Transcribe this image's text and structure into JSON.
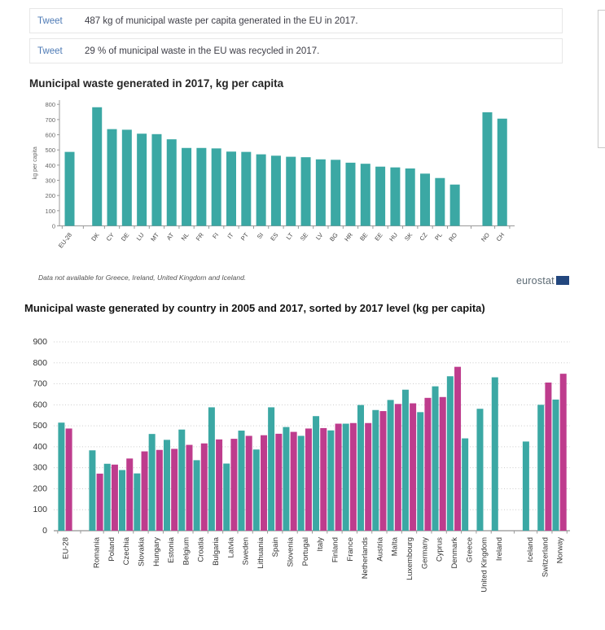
{
  "tweets": [
    {
      "link_label": "Tweet",
      "text": "487 kg of municipal waste per capita generated in the EU in 2017."
    },
    {
      "link_label": "Tweet",
      "text": "29 % of municipal waste in the EU was recycled in 2017."
    }
  ],
  "branding": {
    "logo_text": "eurostat"
  },
  "chart_data": [
    {
      "type": "bar",
      "title": "Municipal waste generated in 2017, kg per capita",
      "xlabel": "",
      "ylabel": "kg per capita",
      "ylim": [
        0,
        800
      ],
      "ytick_step": 100,
      "grid": false,
      "legend": "none",
      "bar_color": "#3BA8A4",
      "categories": [
        "EU-28",
        "DK",
        "CY",
        "DE",
        "LU",
        "MT",
        "AT",
        "NL",
        "FR",
        "FI",
        "IT",
        "PT",
        "SI",
        "ES",
        "LT",
        "SE",
        "LV",
        "BG",
        "HR",
        "BE",
        "EE",
        "HU",
        "SK",
        "CZ",
        "PL",
        "RO",
        "NO",
        "CH"
      ],
      "values": [
        487,
        781,
        637,
        633,
        607,
        604,
        570,
        513,
        513,
        510,
        489,
        487,
        471,
        462,
        455,
        452,
        438,
        435,
        416,
        409,
        390,
        385,
        378,
        344,
        315,
        272,
        748,
        706
      ],
      "gaps_before": [
        "DK",
        "NO"
      ],
      "footnote": "Data not available for Greece, Ireland, United Kingdom and Iceland."
    },
    {
      "type": "bar",
      "title": "Municipal waste generated by country in 2005 and 2017, sorted by 2017 level (kg per capita)",
      "xlabel": "",
      "ylabel": "",
      "ylim": [
        0,
        900
      ],
      "ytick_step": 100,
      "grid": true,
      "legend": "none",
      "categories": [
        "EU-28",
        "Romania",
        "Poland",
        "Czechia",
        "Slovakia",
        "Hungary",
        "Estonia",
        "Belgium",
        "Croatia",
        "Bulgaria",
        "Latvia",
        "Sweden",
        "Lithuania",
        "Spain",
        "Slovenia",
        "Portugal",
        "Italy",
        "Finland",
        "France",
        "Netherlands",
        "Austria",
        "Malta",
        "Luxembourg",
        "Germany",
        "Cyprus",
        "Denmark",
        "Greece",
        "United Kingdom",
        "Ireland",
        "Iceland",
        "Switzerland",
        "Norway"
      ],
      "series": [
        {
          "name": "2005",
          "color": "#3BA8A4",
          "values": [
            515,
            383,
            319,
            289,
            273,
            461,
            433,
            482,
            336,
            588,
            320,
            477,
            387,
            588,
            494,
            452,
            546,
            478,
            510,
            599,
            575,
            623,
            672,
            565,
            688,
            736,
            440,
            581,
            731,
            425,
            600,
            625
          ]
        },
        {
          "name": "2017",
          "color": "#BE3C8D",
          "values": [
            487,
            272,
            315,
            344,
            378,
            385,
            390,
            409,
            416,
            435,
            438,
            452,
            455,
            462,
            471,
            487,
            489,
            510,
            513,
            513,
            570,
            604,
            607,
            633,
            637,
            781,
            null,
            null,
            null,
            null,
            706,
            748
          ]
        }
      ],
      "gaps_before": [
        "Romania",
        "Iceland"
      ]
    }
  ]
}
